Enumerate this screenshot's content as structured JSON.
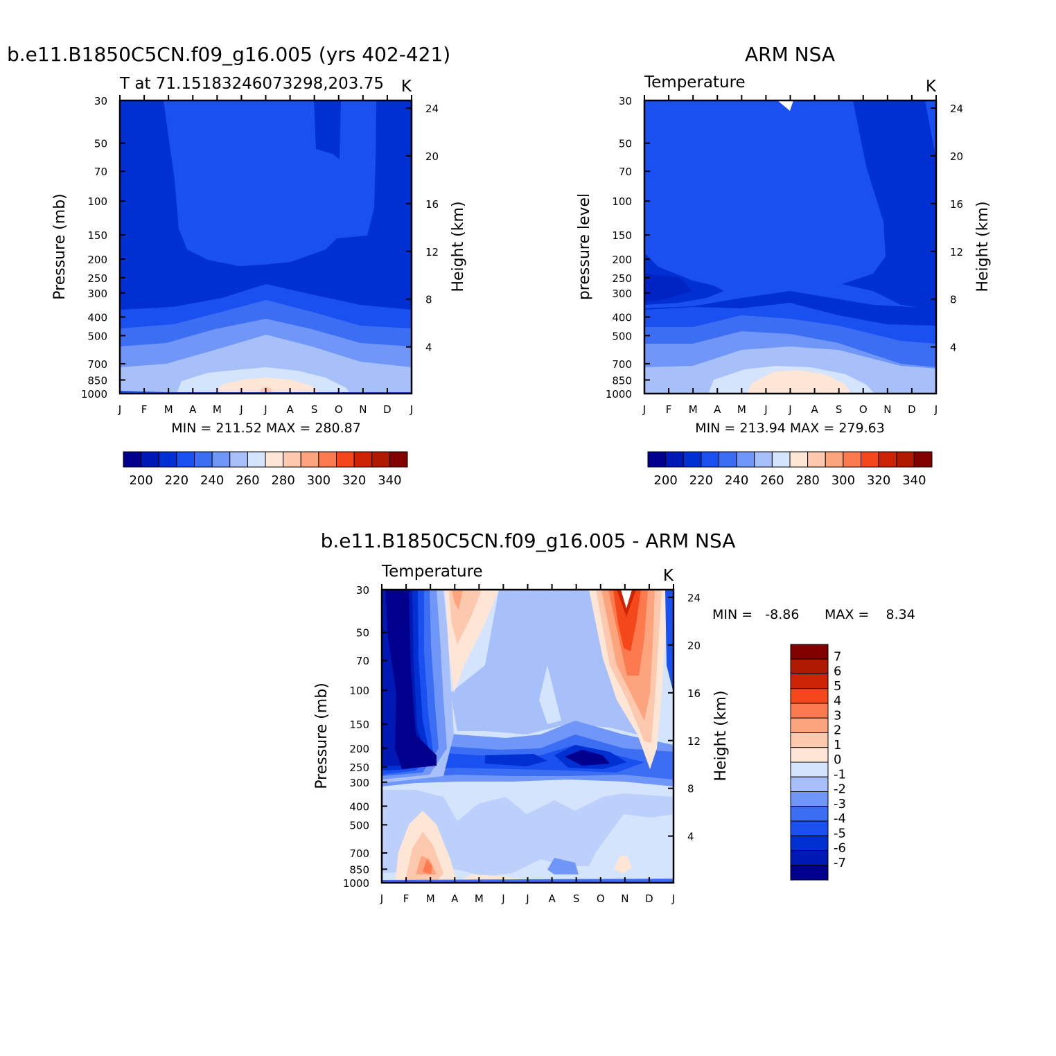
{
  "palette": [
    "#00008c",
    "#0018b4",
    "#0030d2",
    "#1a50f0",
    "#3c6ef4",
    "#7096f8",
    "#a8c0fa",
    "#d4e4fc",
    "#fde6d6",
    "#fcc8ae",
    "#fca47e",
    "#fc7a4e",
    "#f4481c",
    "#cc2404",
    "#b01a00",
    "#800000"
  ],
  "months": [
    "J",
    "F",
    "M",
    "A",
    "M",
    "J",
    "J",
    "A",
    "S",
    "O",
    "N",
    "D",
    "J"
  ],
  "pressure_ticks": [
    "30",
    "50",
    "70",
    "100",
    "150",
    "200",
    "250",
    "300",
    "400",
    "500",
    "700",
    "850",
    "1000"
  ],
  "height_ticks": [
    "24",
    "20",
    "16",
    "12",
    "8",
    "4"
  ],
  "panels": [
    {
      "title": "b.e11.B1850C5CN.f09_g16.005 (yrs 402-421)",
      "left_label": "T at 71.15183246073298,203.75",
      "units": "K",
      "y_label": "Pressure (mb)",
      "y2_label": "Height (km)",
      "stats": "MIN = 211.52 MAX = 280.87"
    },
    {
      "title": "ARM NSA",
      "left_label": "Temperature",
      "units": "K",
      "y_label": "pressure level",
      "y2_label": "Height (km)",
      "stats": "MIN = 213.94 MAX = 279.63"
    },
    {
      "title": "b.e11.B1850C5CN.f09_g16.005 - ARM NSA",
      "left_label": "Temperature",
      "units": "K",
      "y_label": "Pressure (mb)",
      "y2_label": "Height (km)",
      "stats_min": "MIN =   -8.86",
      "stats_max": "MAX =    8.34"
    }
  ],
  "colorbar_h_labels": [
    "200",
    "220",
    "240",
    "260",
    "280",
    "300",
    "320",
    "340"
  ],
  "colorbar_v_labels": [
    "7",
    "6",
    "5",
    "4",
    "3",
    "2",
    "1",
    "0",
    "-1",
    "-2",
    "-3",
    "-4",
    "-5",
    "-6",
    "-7"
  ],
  "chart_data": [
    {
      "type": "heatmap",
      "title": "b.e11.B1850C5CN.f09_g16.005 (yrs 402-421)",
      "subtitle": "T at 71.15183246073298,203.75",
      "units": "K",
      "x": [
        "J",
        "F",
        "M",
        "A",
        "M",
        "J",
        "J",
        "A",
        "S",
        "O",
        "N",
        "D",
        "J"
      ],
      "y_pressure_mb": [
        30,
        50,
        70,
        100,
        150,
        200,
        250,
        300,
        400,
        500,
        700,
        850,
        1000
      ],
      "ylabel": "Pressure (mb)",
      "y2label": "Height (km)",
      "y2_ticks_km": [
        24,
        20,
        16,
        12,
        8,
        4
      ],
      "contour_levels": [
        195,
        200,
        210,
        220,
        230,
        240,
        250,
        260,
        270,
        280,
        290,
        300,
        310,
        320,
        330,
        340
      ],
      "min": 211.52,
      "max": 280.87,
      "surface_profile_K": [
        262,
        262,
        263,
        264,
        268,
        274,
        279,
        277,
        273,
        267,
        263,
        262,
        262
      ],
      "colorbar": {
        "orientation": "horizontal",
        "labels": [
          200,
          220,
          240,
          260,
          280,
          300,
          320,
          340
        ]
      }
    },
    {
      "type": "heatmap",
      "title": "ARM NSA",
      "subtitle": "Temperature",
      "units": "K",
      "x": [
        "J",
        "F",
        "M",
        "A",
        "M",
        "J",
        "J",
        "A",
        "S",
        "O",
        "N",
        "D",
        "J"
      ],
      "y_pressure_mb": [
        30,
        50,
        70,
        100,
        150,
        200,
        250,
        300,
        400,
        500,
        700,
        850,
        1000
      ],
      "ylabel": "pressure level",
      "y2label": "Height (km)",
      "y2_ticks_km": [
        24,
        20,
        16,
        12,
        8,
        4
      ],
      "contour_levels": [
        195,
        200,
        210,
        220,
        230,
        240,
        250,
        260,
        270,
        280,
        290,
        300,
        310,
        320,
        330,
        340
      ],
      "min": 213.94,
      "max": 279.63,
      "surface_profile_K": [
        261,
        261,
        262,
        264,
        268,
        274,
        278,
        276,
        272,
        266,
        262,
        261,
        261
      ],
      "colorbar": {
        "orientation": "horizontal",
        "labels": [
          200,
          220,
          240,
          260,
          280,
          300,
          320,
          340
        ]
      }
    },
    {
      "type": "heatmap",
      "title": "b.e11.B1850C5CN.f09_g16.005 - ARM NSA",
      "subtitle": "Temperature",
      "units": "K",
      "x": [
        "J",
        "F",
        "M",
        "A",
        "M",
        "J",
        "J",
        "A",
        "S",
        "O",
        "N",
        "D",
        "J"
      ],
      "y_pressure_mb": [
        30,
        50,
        70,
        100,
        150,
        200,
        250,
        300,
        400,
        500,
        700,
        850,
        1000
      ],
      "ylabel": "Pressure (mb)",
      "y2label": "Height (km)",
      "y2_ticks_km": [
        24,
        20,
        16,
        12,
        8,
        4
      ],
      "contour_levels": [
        -8,
        -7,
        -6,
        -5,
        -4,
        -3,
        -2,
        -1,
        0,
        1,
        2,
        3,
        4,
        5,
        6,
        7,
        8
      ],
      "min": -8.86,
      "max": 8.34,
      "features": [
        {
          "region": "Jan-Feb, 30-200 mb",
          "value_K": -8
        },
        {
          "region": "Oct-Dec, 30-150 mb",
          "value_K": 6
        },
        {
          "region": "Mar, 700-850 mb",
          "value_K": 4
        },
        {
          "region": "200 mb band",
          "value_K": -6
        }
      ],
      "colorbar": {
        "orientation": "vertical",
        "labels": [
          7,
          6,
          5,
          4,
          3,
          2,
          1,
          0,
          -1,
          -2,
          -3,
          -4,
          -5,
          -6,
          -7
        ]
      }
    }
  ]
}
